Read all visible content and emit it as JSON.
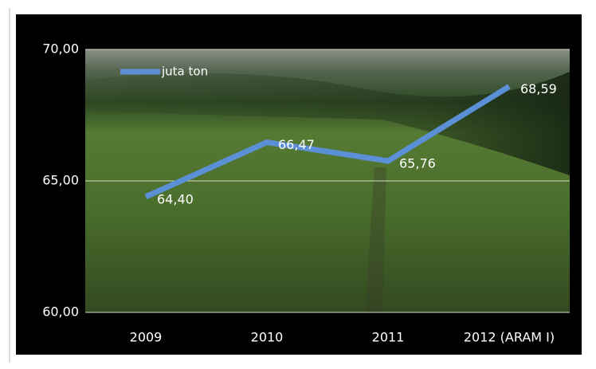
{
  "chart_data": {
    "type": "line",
    "categories": [
      "2009",
      "2010",
      "2011",
      "2012 (ARAM I)"
    ],
    "series": [
      {
        "name": "juta ton",
        "color": "#5b8fd6",
        "values": [
          64.4,
          66.47,
          65.76,
          68.59
        ],
        "value_labels": [
          "64,40",
          "66,47",
          "65,76",
          "68,59"
        ]
      }
    ],
    "ylim": [
      60,
      70
    ],
    "yticks": [
      {
        "value": 60,
        "label": "60,00"
      },
      {
        "value": 65,
        "label": "65,00"
      },
      {
        "value": 70,
        "label": "70,00"
      }
    ],
    "grid": true,
    "legend": "top-left"
  }
}
